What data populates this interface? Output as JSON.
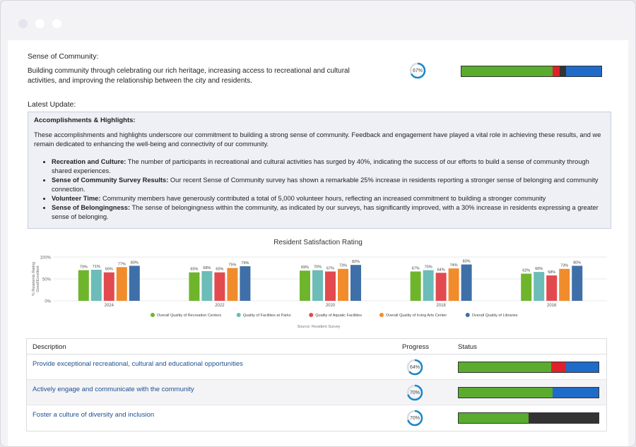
{
  "window": {
    "dots": [
      "close",
      "minimize",
      "maximize"
    ]
  },
  "goal": {
    "title": "Sense of Community:",
    "description": "Building community through celebrating our rich heritage, increasing access to recreational and cultural activities, and improving the relationship between the city and residents.",
    "progress_label": "67%",
    "progress": 0.67,
    "status_segments": [
      {
        "color": "#5aab2e",
        "fraction": 0.65
      },
      {
        "color": "#e0202a",
        "fraction": 0.05
      },
      {
        "color": "#333333",
        "fraction": 0.05
      },
      {
        "color": "#1f6bc9",
        "fraction": 0.25
      }
    ]
  },
  "latest_update_label": "Latest Update:",
  "update": {
    "heading": "Accomplishments & Highlights:",
    "intro": "These accomplishments and highlights underscore our commitment to building a strong sense of community. Feedback and engagement have played a vital role in achieving these results, and we remain dedicated to enhancing the well-being and connectivity of our community.",
    "items": [
      {
        "term": "Recreation and Culture:",
        "text": " The number of participants in recreational and cultural activities has surged by 40%, indicating the success of our efforts to build a sense of community through shared experiences."
      },
      {
        "term": "Sense of Community Survey Results:",
        "text": " Our recent Sense of Community survey has shown a remarkable 25% increase in residents reporting a stronger sense of belonging and community connection."
      },
      {
        "term": "Volunteer Time:",
        "text": " Community members have generously contributed a total of 5,000 volunteer hours, reflecting an increased commitment to building a stronger community"
      },
      {
        "term": "Sense of Belongingness:",
        "text": " The sense of belongingness within the community, as indicated by our surveys, has significantly improved, with a 30% increase in residents expressing a greater sense of belonging."
      }
    ]
  },
  "chart_data": {
    "type": "bar",
    "title": "Resident Satisfaction Rating",
    "ylabel": "% Residents Rating Good/Excellent",
    "xlabel": "",
    "ylim": [
      0,
      100
    ],
    "yticks": [
      "0%",
      "50%",
      "100%"
    ],
    "categories": [
      "2024",
      "2022",
      "2020",
      "2018",
      "2016"
    ],
    "series": [
      {
        "name": "Overall Quality of Recreation Centers",
        "color": "#6fb52c",
        "values": [
          70,
          65,
          69,
          67,
          62
        ]
      },
      {
        "name": "Quality of Facilities at Parks",
        "color": "#6cbcb8",
        "values": [
          71,
          68,
          70,
          70,
          66
        ]
      },
      {
        "name": "Quality of Aquatic Facilities",
        "color": "#e34a4f",
        "values": [
          65,
          65,
          67,
          64,
          58
        ]
      },
      {
        "name": "Overall Quality of Irving Arts Center",
        "color": "#f08c2c",
        "values": [
          77,
          75,
          73,
          74,
          73
        ]
      },
      {
        "name": "Overall Quality of Libraries",
        "color": "#3f6fa8",
        "values": [
          80,
          79,
          82,
          83,
          80
        ]
      }
    ],
    "legend_position": "bottom",
    "source": "Source: Resident Survey",
    "grid": true
  },
  "table": {
    "headers": {
      "description": "Description",
      "progress": "Progress",
      "status": "Status"
    },
    "rows": [
      {
        "description": "Provide exceptional recreational, cultural and educational opportunities",
        "progress_label": "64%",
        "progress": 0.64,
        "segments": [
          {
            "color": "#5aab2e",
            "fraction": 0.66
          },
          {
            "color": "#e0202a",
            "fraction": 0.11
          },
          {
            "color": "#1f6bc9",
            "fraction": 0.23
          }
        ]
      },
      {
        "description": "Actively engage and communicate with the community",
        "progress_label": "70%",
        "progress": 0.7,
        "segments": [
          {
            "color": "#5aab2e",
            "fraction": 0.67
          },
          {
            "color": "#1f6bc9",
            "fraction": 0.33
          }
        ]
      },
      {
        "description": "Foster a culture of diversity and inclusion",
        "progress_label": "70%",
        "progress": 0.7,
        "segments": [
          {
            "color": "#5aab2e",
            "fraction": 0.5
          },
          {
            "color": "#333333",
            "fraction": 0.5
          }
        ]
      }
    ]
  }
}
